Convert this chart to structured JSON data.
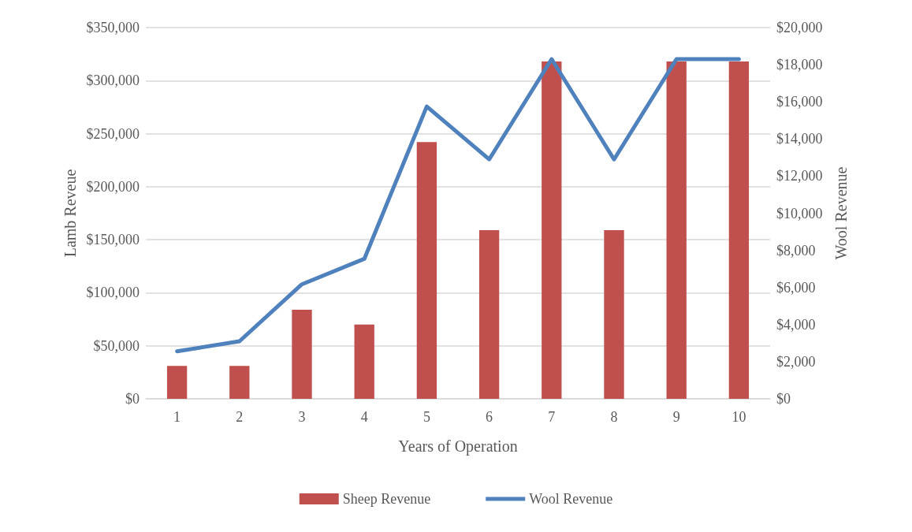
{
  "chart_data": {
    "type": "bar",
    "xlabel": "Years of Operation",
    "ylabel": "Lamb Reveue",
    "y2label": "Wool Revenue",
    "categories": [
      "1",
      "2",
      "3",
      "4",
      "5",
      "6",
      "7",
      "8",
      "9",
      "10"
    ],
    "series": [
      {
        "name": "Sheep Revenue",
        "color": "#c0504d",
        "values": [
          31000,
          31000,
          84000,
          70000,
          242000,
          159000,
          318000,
          159000,
          318000,
          318000
        ]
      },
      {
        "name": "Wool Revenue",
        "type": "line",
        "axis": "y2",
        "color": "#4f81bd",
        "values": [
          2560,
          3100,
          6170,
          7540,
          15750,
          12900,
          18300,
          12900,
          18300,
          18300
        ]
      }
    ],
    "ylim": [
      0,
      350000
    ],
    "yticks": [
      {
        "value": 0,
        "label": "$0"
      },
      {
        "value": 50000,
        "label": "$50,000"
      },
      {
        "value": 100000,
        "label": "$100,000"
      },
      {
        "value": 150000,
        "label": "$150,000"
      },
      {
        "value": 200000,
        "label": "$200,000"
      },
      {
        "value": 250000,
        "label": "$250,000"
      },
      {
        "value": 300000,
        "label": "$300,000"
      },
      {
        "value": 350000,
        "label": "$350,000"
      }
    ],
    "y2lim": [
      0,
      20000
    ],
    "y2ticks": [
      {
        "value": 0,
        "label": "$0"
      },
      {
        "value": 2000,
        "label": "$2,000"
      },
      {
        "value": 4000,
        "label": "$4,000"
      },
      {
        "value": 6000,
        "label": "$6,000"
      },
      {
        "value": 8000,
        "label": "$8,000"
      },
      {
        "value": 10000,
        "label": "$10,000"
      },
      {
        "value": 12000,
        "label": "$12,000"
      },
      {
        "value": 14000,
        "label": "$14,000"
      },
      {
        "value": 16000,
        "label": "$16,000"
      },
      {
        "value": 18000,
        "label": "$18,000"
      },
      {
        "value": 20000,
        "label": "$20,000"
      }
    ],
    "grid": "y",
    "legend": "bottom",
    "marker": "none",
    "line_style": "solid"
  }
}
